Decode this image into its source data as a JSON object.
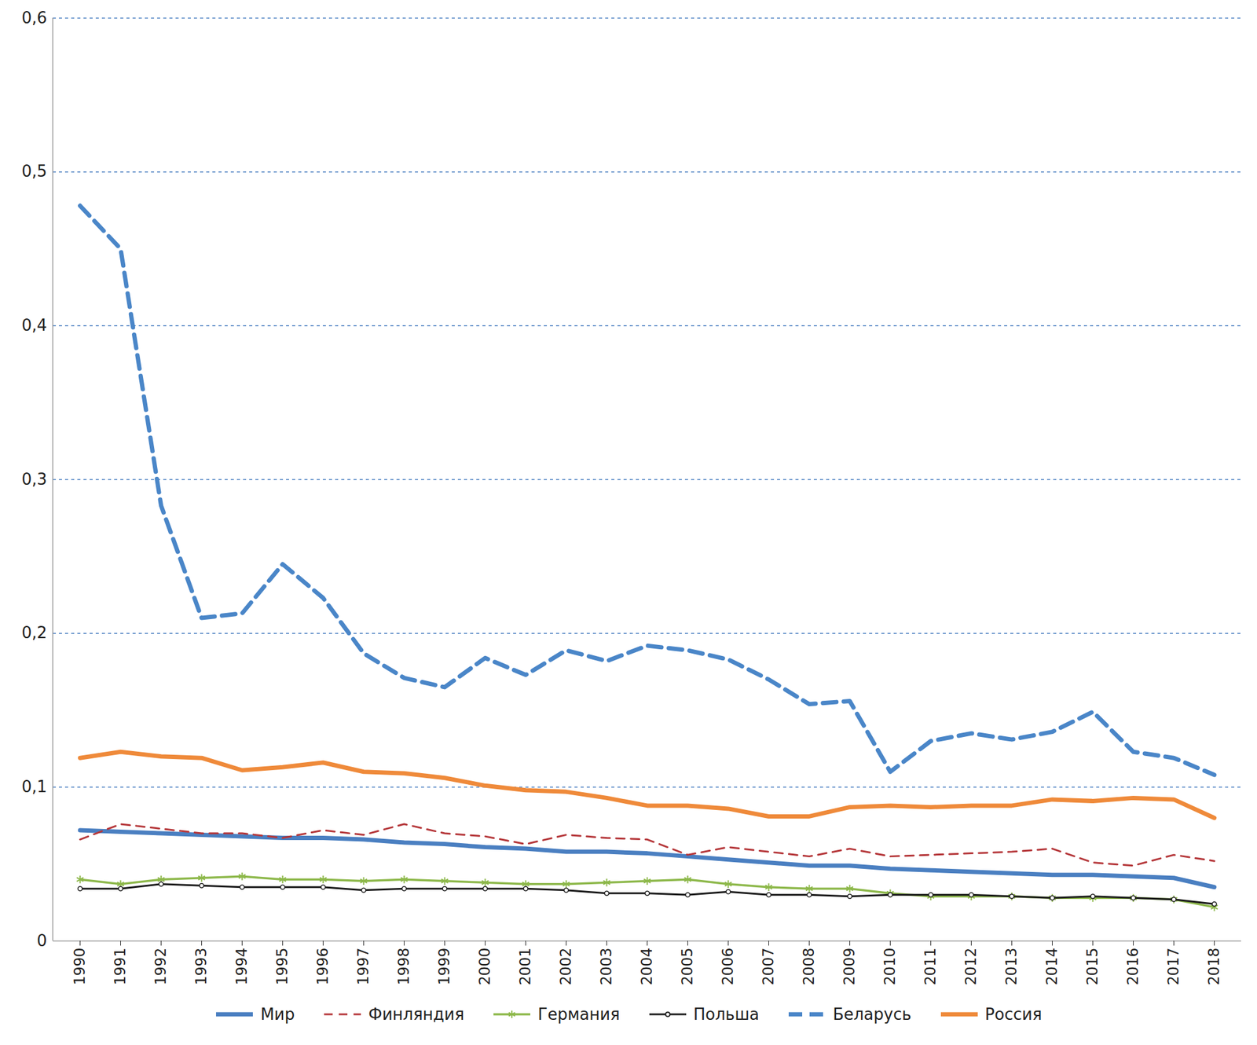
{
  "chart_data": {
    "type": "line",
    "categories": [
      "1990",
      "1991",
      "1992",
      "1993",
      "1994",
      "1995",
      "1996",
      "1997",
      "1998",
      "1999",
      "2000",
      "2001",
      "2002",
      "2003",
      "2004",
      "2005",
      "2006",
      "2007",
      "2008",
      "2009",
      "2010",
      "2011",
      "2012",
      "2013",
      "2014",
      "2015",
      "2016",
      "2017",
      "2018"
    ],
    "ylim": [
      0,
      0.6
    ],
    "yticks": [
      0,
      {
        "value": 0.1,
        "label": "0,1"
      },
      {
        "value": 0.2,
        "label": "0,2"
      },
      {
        "value": 0.3,
        "label": "0,3"
      },
      {
        "value": 0.4,
        "label": "0,4"
      },
      {
        "value": 0.5,
        "label": "0,5"
      },
      {
        "value": 0.6,
        "label": "0,6"
      }
    ],
    "grid": true,
    "legend": "bottom",
    "series": [
      {
        "name": "Мир",
        "color": "#4a7fc1",
        "line_style": "solid",
        "values": [
          0.072,
          0.071,
          0.07,
          0.069,
          0.068,
          0.067,
          0.067,
          0.066,
          0.064,
          0.063,
          0.061,
          0.06,
          0.058,
          0.058,
          0.057,
          0.055,
          0.053,
          0.051,
          0.049,
          0.049,
          0.047,
          0.046,
          0.045,
          0.044,
          0.043,
          0.043,
          0.042,
          0.041,
          0.035
        ]
      },
      {
        "name": "Финляндия",
        "color": "#b5373a",
        "line_style": "dashed",
        "values": [
          0.066,
          0.076,
          0.073,
          0.07,
          0.07,
          0.067,
          0.072,
          0.069,
          0.076,
          0.07,
          0.068,
          0.063,
          0.069,
          0.067,
          0.066,
          0.056,
          0.061,
          0.058,
          0.055,
          0.06,
          0.055,
          0.056,
          0.057,
          0.058,
          0.06,
          0.051,
          0.049,
          0.056,
          0.052
        ]
      },
      {
        "name": "Германия",
        "color": "#8db84a",
        "line_style": "solid",
        "marker": "asterisk",
        "values": [
          0.04,
          0.037,
          0.04,
          0.041,
          0.042,
          0.04,
          0.04,
          0.039,
          0.04,
          0.039,
          0.038,
          0.037,
          0.037,
          0.038,
          0.039,
          0.04,
          0.037,
          0.035,
          0.034,
          0.034,
          0.031,
          0.029,
          0.029,
          0.029,
          0.028,
          0.028,
          0.028,
          0.027,
          0.022
        ]
      },
      {
        "name": "Польша",
        "color": "#1a1a1a",
        "line_style": "solid",
        "marker": "circle",
        "values": [
          0.034,
          0.034,
          0.037,
          0.036,
          0.035,
          0.035,
          0.035,
          0.033,
          0.034,
          0.034,
          0.034,
          0.034,
          0.033,
          0.031,
          0.031,
          0.03,
          0.032,
          0.03,
          0.03,
          0.029,
          0.03,
          0.03,
          0.03,
          0.029,
          0.028,
          0.029,
          0.028,
          0.027,
          0.024
        ]
      },
      {
        "name": "Беларусь",
        "color": "#4a86c8",
        "line_style": "dashed",
        "values": [
          0.478,
          0.45,
          0.283,
          0.21,
          0.213,
          0.245,
          0.223,
          0.187,
          0.171,
          0.165,
          0.184,
          0.173,
          0.189,
          0.182,
          0.192,
          0.189,
          0.183,
          0.17,
          0.154,
          0.156,
          0.11,
          0.13,
          0.135,
          0.131,
          0.136,
          0.149,
          0.123,
          0.119,
          0.108
        ]
      },
      {
        "name": "Россия",
        "color": "#ef8a3a",
        "line_style": "solid",
        "values": [
          0.119,
          0.123,
          0.12,
          0.119,
          0.111,
          0.113,
          0.116,
          0.11,
          0.109,
          0.106,
          0.101,
          0.098,
          0.097,
          0.093,
          0.088,
          0.088,
          0.086,
          0.081,
          0.081,
          0.087,
          0.088,
          0.087,
          0.088,
          0.088,
          0.092,
          0.091,
          0.093,
          0.092,
          0.08
        ]
      }
    ]
  }
}
